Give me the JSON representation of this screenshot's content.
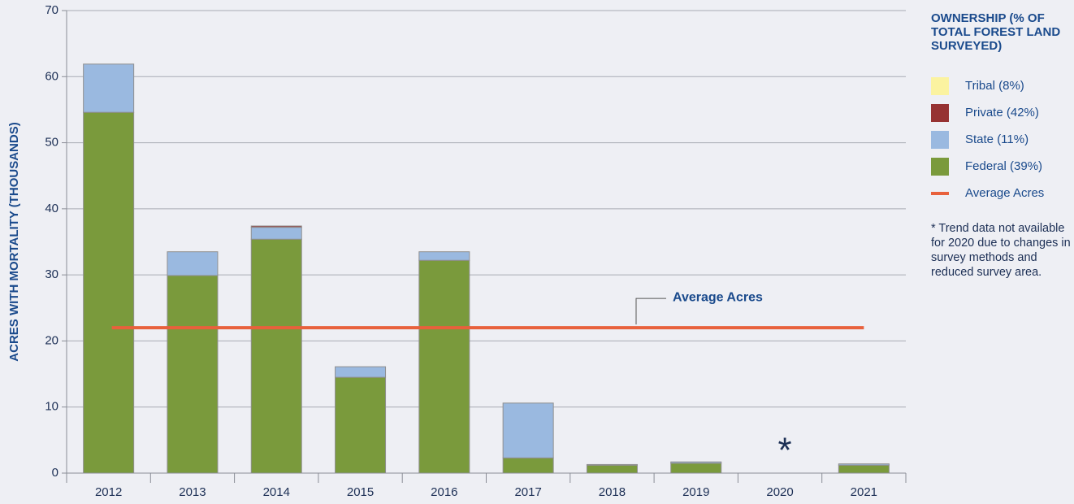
{
  "chart_data": {
    "type": "bar",
    "stacked": true,
    "ylabel": "ACRES WITH MORTALITY (THOUSANDS)",
    "categories": [
      "2012",
      "2013",
      "2014",
      "2015",
      "2016",
      "2017",
      "2018",
      "2019",
      "2020",
      "2021"
    ],
    "series": [
      {
        "name": "Federal (39%)",
        "color": "#7a9a3c",
        "values": [
          54.6,
          29.9,
          35.4,
          14.5,
          32.2,
          2.3,
          1.2,
          1.5,
          null,
          1.2
        ]
      },
      {
        "name": "State (11%)",
        "color": "#9ab9e0",
        "values": [
          7.3,
          3.6,
          1.8,
          1.6,
          1.3,
          8.3,
          0.1,
          0.2,
          null,
          0.2
        ]
      },
      {
        "name": "Private (42%)",
        "color": "#963232",
        "values": [
          0,
          0,
          0.2,
          0,
          0,
          0,
          0,
          0,
          null,
          0
        ]
      },
      {
        "name": "Tribal (8%)",
        "color": "#fbf3a0",
        "values": [
          0,
          0,
          0,
          0,
          0,
          0,
          0,
          0,
          null,
          0
        ]
      }
    ],
    "average": {
      "name": "Average Acres",
      "value": 22,
      "color": "#e8613c"
    },
    "missing_marker": "*",
    "legend_title": "OWNERSHIP (% OF TOTAL FOREST LAND SURVEYED)",
    "note": "* Trend data not available for 2020 due to changes in survey methods and reduced survey area.",
    "ylim": [
      0,
      70
    ],
    "yticks": [
      0,
      10,
      20,
      30,
      40,
      50,
      60,
      70
    ],
    "grid": true,
    "legend": "right"
  }
}
